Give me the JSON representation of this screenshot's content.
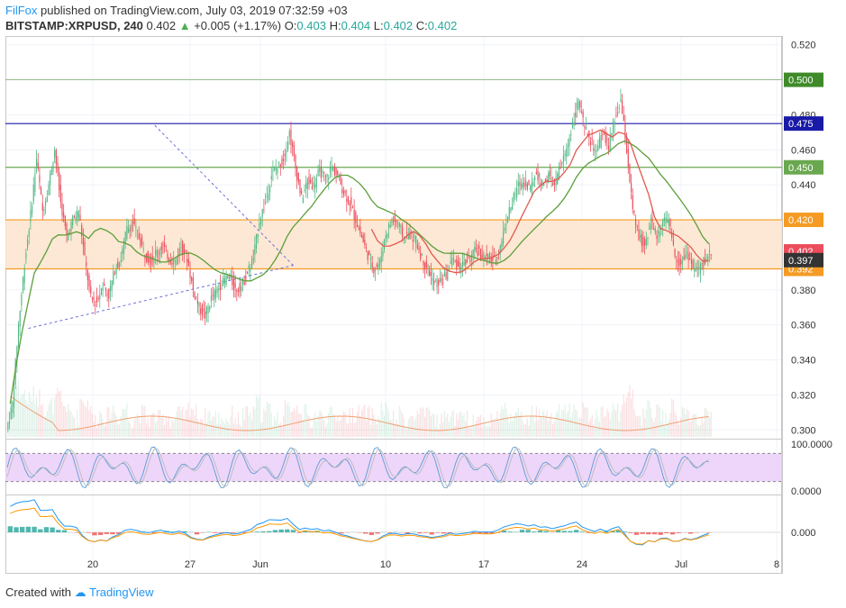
{
  "header": {
    "author": "FilFox",
    "published_text": "published on TradingView.com, July 03, 2019 07:32:59 +03",
    "symbol": "BITSTAMP:XRPUSD, 240",
    "last": "0.402",
    "change": "+0.005 (+1.17%)",
    "o_label": "O:",
    "o": "0.403",
    "h_label": "H:",
    "h": "0.404",
    "l_label": "L:",
    "l": "0.402",
    "c_label": "C:",
    "c": "0.402"
  },
  "footer": {
    "created_with": "Created with",
    "brand": "TradingView"
  },
  "colors": {
    "up": "#53b987",
    "down": "#eb4d5c",
    "ma_green": "#5d9e3a",
    "ma_red": "#e05a4f",
    "zone": "#fbe4cc",
    "zone_line": "#f5b36a",
    "blue_line": "#1a1aa8",
    "green_line": "#6aa84f",
    "stoch_band": "#e8ccf7",
    "trend": "#6f6fd8"
  },
  "chart_data": [
    {
      "type": "candlestick",
      "title": "BITSTAMP:XRPUSD, 240",
      "ylim": [
        0.295,
        0.525
      ],
      "y_ticks": [
        "0.520",
        "0.480",
        "0.460",
        "0.440",
        "0.380",
        "0.360",
        "0.340",
        "0.320",
        "0.300"
      ],
      "x_ticks": [
        "20",
        "27",
        "Jun",
        "10",
        "17",
        "24",
        "Jul",
        "8"
      ],
      "closes": [
        0.315,
        0.36,
        0.395,
        0.423,
        0.455,
        0.425,
        0.44,
        0.46,
        0.43,
        0.41,
        0.42,
        0.425,
        0.398,
        0.375,
        0.373,
        0.383,
        0.377,
        0.392,
        0.398,
        0.415,
        0.418,
        0.41,
        0.4,
        0.397,
        0.402,
        0.405,
        0.398,
        0.396,
        0.405,
        0.398,
        0.38,
        0.37,
        0.365,
        0.375,
        0.38,
        0.385,
        0.388,
        0.38,
        0.382,
        0.39,
        0.398,
        0.42,
        0.43,
        0.446,
        0.45,
        0.455,
        0.47,
        0.45,
        0.432,
        0.442,
        0.44,
        0.448,
        0.443,
        0.45,
        0.445,
        0.436,
        0.43,
        0.42,
        0.41,
        0.4,
        0.392,
        0.396,
        0.412,
        0.42,
        0.418,
        0.41,
        0.412,
        0.408,
        0.398,
        0.392,
        0.383,
        0.385,
        0.388,
        0.398,
        0.393,
        0.395,
        0.398,
        0.403,
        0.4,
        0.398,
        0.397,
        0.405,
        0.42,
        0.43,
        0.44,
        0.442,
        0.438,
        0.447,
        0.44,
        0.445,
        0.44,
        0.45,
        0.46,
        0.475,
        0.488,
        0.472,
        0.465,
        0.458,
        0.47,
        0.462,
        0.477,
        0.488,
        0.46,
        0.425,
        0.41,
        0.405,
        0.42,
        0.41,
        0.42,
        0.418,
        0.4,
        0.395,
        0.402,
        0.392,
        0.392,
        0.397,
        0.402
      ],
      "overlays": {
        "ma_green": "50-period moving average (green)",
        "ma_red": "moving average (red)"
      },
      "horizontal_levels": [
        {
          "value": 0.5,
          "label": "0.500",
          "color": "#3f8b2a"
        },
        {
          "value": 0.475,
          "label": "0.475",
          "color": "#1a1aa8"
        },
        {
          "value": 0.45,
          "label": "0.450",
          "color": "#6aa84f"
        },
        {
          "value": 0.42,
          "label": "0.420",
          "color": "#f59a23"
        },
        {
          "value": 0.392,
          "label": "0.392",
          "color": "#f59a23"
        }
      ],
      "price_tags": [
        {
          "value": 0.402,
          "label": "0.402",
          "color": "#eb4d5c"
        },
        {
          "value": 0.397,
          "label": "0.397",
          "color": "#333333"
        }
      ],
      "zone": [
        0.392,
        0.42
      ],
      "trendlines": [
        {
          "from": [
            3,
            0.358
          ],
          "to": [
            47,
            0.394
          ]
        },
        {
          "from": [
            24,
            0.474
          ],
          "to": [
            47,
            0.394
          ]
        }
      ]
    },
    {
      "type": "line",
      "name": "Stochastic RSI",
      "ylim": [
        0,
        100
      ],
      "y_ticks": [
        "100.0000",
        "0.0000"
      ],
      "band": [
        20,
        80
      ]
    },
    {
      "type": "bar",
      "name": "MACD",
      "y_ticks": [
        "0.000"
      ]
    }
  ]
}
